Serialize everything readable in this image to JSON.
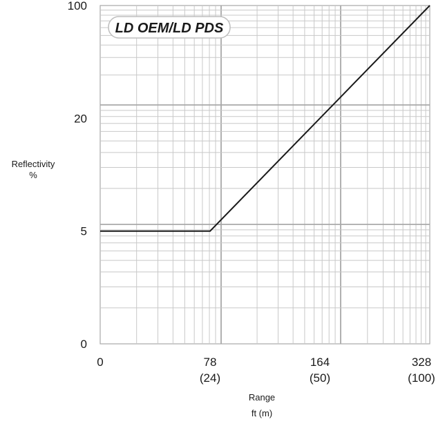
{
  "chart_data": {
    "type": "line",
    "title": "LD OEM/LD PDS",
    "xlabel": "Range",
    "xlabel_units": "ft (m)",
    "ylabel": "Reflectivity",
    "ylabel_units": "%",
    "x_ticks": [
      {
        "value": 0,
        "label": "0",
        "sublabel": ""
      },
      {
        "value": 78,
        "label": "78",
        "sublabel": "(24)"
      },
      {
        "value": 164,
        "label": "164",
        "sublabel": "(50)"
      },
      {
        "value": 328,
        "label": "328",
        "sublabel": "(100)"
      }
    ],
    "y_ticks": [
      {
        "value": 0,
        "label": "0"
      },
      {
        "value": 5,
        "label": "5"
      },
      {
        "value": 20,
        "label": "20"
      },
      {
        "value": 100,
        "label": "100"
      }
    ],
    "series": [
      {
        "x": [
          0,
          78,
          328
        ],
        "y": [
          5,
          5,
          100
        ]
      }
    ],
    "grid": true,
    "line_color": "#1a1a1a",
    "grid_color": "#c8c8c8",
    "grid_major_color": "#a8a8a8"
  }
}
